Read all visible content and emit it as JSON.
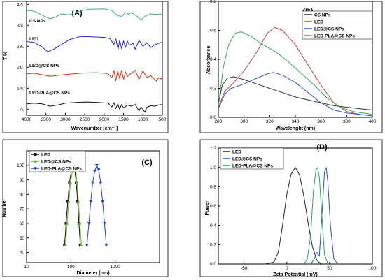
{
  "chart_data": [
    {
      "panel": "(A)",
      "type": "line",
      "xlabel": "Wavenumber [cm⁻¹]",
      "ylabel": "T %",
      "xlim": [
        4000,
        500
      ],
      "x_ticks": [
        "4000",
        "3500",
        "3000",
        "2500",
        "2000",
        "1500",
        "1000",
        "500"
      ],
      "y_ticks": [
        "70",
        "140",
        "210",
        "280",
        "350",
        "420"
      ],
      "ylim": [
        50,
        430
      ],
      "series": [
        {
          "name": "CS NPs",
          "color": "#3aa6a6",
          "values": [
            [
              4000,
              400
            ],
            [
              3800,
              397
            ],
            [
              3600,
              384
            ],
            [
              3400,
              372
            ],
            [
              3300,
              375
            ],
            [
              3100,
              388
            ],
            [
              2900,
              385
            ],
            [
              2700,
              395
            ],
            [
              2400,
              404
            ],
            [
              2000,
              405
            ],
            [
              1800,
              399
            ],
            [
              1650,
              382
            ],
            [
              1550,
              380
            ],
            [
              1450,
              392
            ],
            [
              1380,
              387
            ],
            [
              1300,
              392
            ],
            [
              1150,
              380
            ],
            [
              1050,
              368
            ],
            [
              950,
              380
            ],
            [
              800,
              388
            ],
            [
              600,
              386
            ],
            [
              500,
              388
            ]
          ]
        },
        {
          "name": "LED",
          "color": "#2222cc",
          "values": [
            [
              4000,
              296
            ],
            [
              3800,
              293
            ],
            [
              3600,
              278
            ],
            [
              3450,
              262
            ],
            [
              3300,
              270
            ],
            [
              3100,
              286
            ],
            [
              2900,
              302
            ],
            [
              2600,
              313
            ],
            [
              2400,
              312
            ],
            [
              2000,
              310
            ],
            [
              1850,
              306
            ],
            [
              1750,
              286
            ],
            [
              1700,
              305
            ],
            [
              1640,
              270
            ],
            [
              1600,
              300
            ],
            [
              1550,
              272
            ],
            [
              1500,
              298
            ],
            [
              1450,
              276
            ],
            [
              1400,
              297
            ],
            [
              1350,
              284
            ],
            [
              1250,
              290
            ],
            [
              1200,
              270
            ],
            [
              1100,
              300
            ],
            [
              1000,
              280
            ],
            [
              900,
              292
            ],
            [
              800,
              276
            ],
            [
              700,
              285
            ],
            [
              600,
              290
            ],
            [
              500,
              294
            ]
          ]
        },
        {
          "name": "LED@CS NPs",
          "color": "#cc3311",
          "values": [
            [
              4000,
              188
            ],
            [
              3800,
              190
            ],
            [
              3600,
              185
            ],
            [
              3400,
              180
            ],
            [
              3200,
              183
            ],
            [
              3000,
              186
            ],
            [
              2800,
              188
            ],
            [
              2500,
              191
            ],
            [
              2200,
              192
            ],
            [
              1900,
              189
            ],
            [
              1800,
              175
            ],
            [
              1750,
              200
            ],
            [
              1700,
              165
            ],
            [
              1650,
              198
            ],
            [
              1600,
              172
            ],
            [
              1550,
              200
            ],
            [
              1500,
              170
            ],
            [
              1450,
              195
            ],
            [
              1400,
              180
            ],
            [
              1300,
              190
            ],
            [
              1200,
              200
            ],
            [
              1100,
              170
            ],
            [
              1000,
              198
            ],
            [
              900,
              176
            ],
            [
              800,
              182
            ],
            [
              650,
              164
            ],
            [
              600,
              175
            ],
            [
              500,
              170
            ]
          ]
        },
        {
          "name": "LED-PLA@CS NPs",
          "color": "#111111",
          "values": [
            [
              4000,
              88
            ],
            [
              3800,
              90
            ],
            [
              3600,
              88
            ],
            [
              3400,
              80
            ],
            [
              3200,
              84
            ],
            [
              3000,
              90
            ],
            [
              2800,
              92
            ],
            [
              2500,
              94
            ],
            [
              2200,
              93
            ],
            [
              1900,
              90
            ],
            [
              1800,
              78
            ],
            [
              1750,
              92
            ],
            [
              1700,
              72
            ],
            [
              1650,
              88
            ],
            [
              1600,
              70
            ],
            [
              1550,
              86
            ],
            [
              1500,
              74
            ],
            [
              1400,
              84
            ],
            [
              1300,
              80
            ],
            [
              1200,
              86
            ],
            [
              1100,
              64
            ],
            [
              1050,
              78
            ],
            [
              950,
              60
            ],
            [
              900,
              76
            ],
            [
              800,
              82
            ],
            [
              700,
              80
            ],
            [
              600,
              84
            ],
            [
              500,
              86
            ]
          ]
        }
      ]
    },
    {
      "panel": "(B)",
      "type": "line",
      "xlabel": "Wavelenght (nm)",
      "ylabel": "Absorbance",
      "xlim": [
        280,
        400
      ],
      "ylim": [
        0,
        0.8
      ],
      "x_ticks": [
        "280",
        "300",
        "320",
        "340",
        "360",
        "380",
        "400"
      ],
      "y_ticks": [
        "0.0",
        "0.2",
        "0.4",
        "0.6",
        "0.8"
      ],
      "series": [
        {
          "name": "CS NPs",
          "color": "#333333",
          "values": [
            [
              280,
              0.09
            ],
            [
              283,
              0.22
            ],
            [
              287,
              0.27
            ],
            [
              292,
              0.28
            ],
            [
              300,
              0.26
            ],
            [
              310,
              0.23
            ],
            [
              320,
              0.2
            ],
            [
              330,
              0.17
            ],
            [
              340,
              0.14
            ],
            [
              350,
              0.12
            ],
            [
              360,
              0.1
            ],
            [
              370,
              0.08
            ],
            [
              380,
              0.07
            ],
            [
              390,
              0.06
            ],
            [
              400,
              0.05
            ]
          ]
        },
        {
          "name": "LED",
          "color": "#cc4444",
          "values": [
            [
              280,
              0.07
            ],
            [
              285,
              0.18
            ],
            [
              290,
              0.22
            ],
            [
              300,
              0.32
            ],
            [
              310,
              0.45
            ],
            [
              318,
              0.58
            ],
            [
              324,
              0.62
            ],
            [
              330,
              0.6
            ],
            [
              340,
              0.5
            ],
            [
              350,
              0.36
            ],
            [
              360,
              0.22
            ],
            [
              370,
              0.1
            ],
            [
              380,
              0.04
            ],
            [
              390,
              0.02
            ],
            [
              400,
              0.01
            ]
          ]
        },
        {
          "name": "LED@CS NPs",
          "color": "#3355cc",
          "values": [
            [
              280,
              0.06
            ],
            [
              285,
              0.16
            ],
            [
              290,
              0.2
            ],
            [
              300,
              0.23
            ],
            [
              310,
              0.27
            ],
            [
              318,
              0.3
            ],
            [
              323,
              0.31
            ],
            [
              330,
              0.29
            ],
            [
              340,
              0.24
            ],
            [
              350,
              0.17
            ],
            [
              360,
              0.1
            ],
            [
              370,
              0.05
            ],
            [
              380,
              0.03
            ],
            [
              390,
              0.02
            ],
            [
              400,
              0.01
            ]
          ]
        },
        {
          "name": "LED-PLA@CS NPs",
          "color": "#33aa55",
          "values": [
            [
              280,
              0.08
            ],
            [
              284,
              0.35
            ],
            [
              288,
              0.5
            ],
            [
              293,
              0.58
            ],
            [
              298,
              0.59
            ],
            [
              305,
              0.56
            ],
            [
              315,
              0.5
            ],
            [
              325,
              0.45
            ],
            [
              335,
              0.38
            ],
            [
              345,
              0.3
            ],
            [
              355,
              0.22
            ],
            [
              365,
              0.13
            ],
            [
              375,
              0.07
            ],
            [
              385,
              0.04
            ],
            [
              400,
              0.02
            ]
          ]
        }
      ]
    },
    {
      "panel": "(C)",
      "type": "line",
      "xlabel": "Diameter (nm)",
      "ylabel": "Number",
      "xscale": "log",
      "xlim": [
        10,
        10000
      ],
      "ylim": [
        33,
        110
      ],
      "x_ticks": [
        "10",
        "100",
        "1000"
      ],
      "y_ticks": [
        "40",
        "50",
        "60",
        "70",
        "80",
        "90",
        "100"
      ],
      "series": [
        {
          "name": "LED",
          "color": "#111111",
          "marker": "square",
          "values": [
            [
              72,
              45
            ],
            [
              78,
              60
            ],
            [
              85,
              75
            ],
            [
              93,
              88
            ],
            [
              102,
              96
            ],
            [
              112,
              100
            ],
            [
              122,
              97
            ],
            [
              132,
              88
            ],
            [
              142,
              75
            ],
            [
              152,
              60
            ],
            [
              163,
              45
            ]
          ]
        },
        {
          "name": "LED@CS NPs",
          "color": "#66bb33",
          "marker": "triangle-up",
          "values": [
            [
              76,
              45
            ],
            [
              82,
              60
            ],
            [
              90,
              75
            ],
            [
              98,
              88
            ],
            [
              108,
              96
            ],
            [
              118,
              100
            ],
            [
              128,
              97
            ],
            [
              138,
              88
            ],
            [
              148,
              75
            ],
            [
              160,
              60
            ],
            [
              172,
              45
            ]
          ]
        },
        {
          "name": "LED-PLA@CS NPs",
          "color": "#2244cc",
          "marker": "triangle-down",
          "values": [
            [
              230,
              45
            ],
            [
              255,
              60
            ],
            [
              280,
              75
            ],
            [
              310,
              88
            ],
            [
              345,
              96
            ],
            [
              385,
              100
            ],
            [
              425,
              97
            ],
            [
              470,
              88
            ],
            [
              520,
              75
            ],
            [
              575,
              60
            ],
            [
              630,
              45
            ]
          ]
        }
      ]
    },
    {
      "panel": "(D)",
      "type": "line",
      "xlabel": "Zeta Potential (mV)",
      "ylabel": "Power",
      "xlim": [
        -80,
        100
      ],
      "ylim": [
        0,
        1.2
      ],
      "x_ticks": [
        "-50",
        "0",
        "50",
        "100"
      ],
      "y_ticks": [
        "0.0",
        "0.2",
        "0.4",
        "0.6",
        "0.8",
        "1.0",
        "1.2"
      ],
      "series": [
        {
          "name": "LED",
          "color": "#222222",
          "values": [
            [
              -25,
              0
            ],
            [
              -15,
              0.02
            ],
            [
              -10,
              0.12
            ],
            [
              -5,
              0.4
            ],
            [
              0,
              0.72
            ],
            [
              5,
              0.93
            ],
            [
              10,
              1.0
            ],
            [
              15,
              0.92
            ],
            [
              20,
              0.7
            ],
            [
              25,
              0.42
            ],
            [
              30,
              0.18
            ],
            [
              35,
              0.04
            ],
            [
              40,
              0
            ]
          ]
        },
        {
          "name": "LED@CS NPs",
          "color": "#2255cc",
          "values": [
            [
              28,
              0
            ],
            [
              32,
              0.05
            ],
            [
              35,
              0.12
            ],
            [
              38,
              0.08
            ],
            [
              41,
              0.5
            ],
            [
              44,
              0.95
            ],
            [
              46,
              1.0
            ],
            [
              48,
              0.85
            ],
            [
              51,
              0.4
            ],
            [
              55,
              0.05
            ],
            [
              60,
              0
            ]
          ]
        },
        {
          "name": "LED-PLA@CS NPs",
          "color": "#22aa66",
          "values": [
            [
              20,
              0
            ],
            [
              24,
              0.05
            ],
            [
              28,
              0.3
            ],
            [
              31,
              0.75
            ],
            [
              34,
              0.97
            ],
            [
              36,
              1.0
            ],
            [
              38,
              0.9
            ],
            [
              41,
              0.5
            ],
            [
              44,
              0.1
            ],
            [
              48,
              0
            ]
          ]
        }
      ]
    }
  ]
}
